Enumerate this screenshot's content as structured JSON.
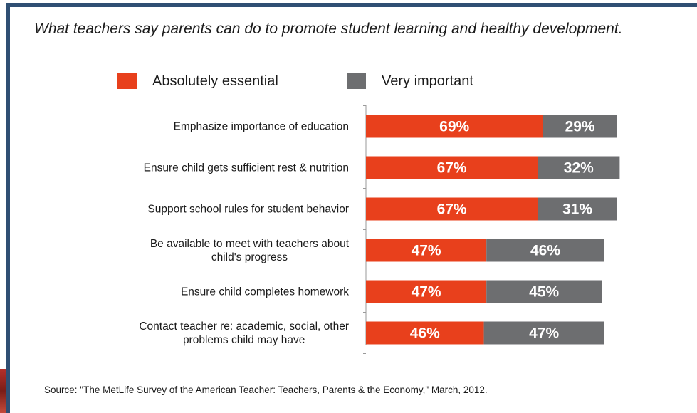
{
  "chart_data": {
    "type": "bar",
    "orientation": "horizontal",
    "stacked": true,
    "title": "What teachers say parents can do to promote student learning and healthy development.",
    "categories": [
      [
        "Emphasize importance of education"
      ],
      [
        "Ensure child gets sufficient rest & nutrition"
      ],
      [
        "Support school rules for student behavior"
      ],
      [
        "Be available to meet with teachers about",
        "child's progress"
      ],
      [
        "Ensure child completes homework"
      ],
      [
        "Contact teacher re: academic, social, other",
        "problems child may have"
      ]
    ],
    "series": [
      {
        "name": "Absolutely essential",
        "color": "#e8401c",
        "values": [
          69,
          67,
          67,
          47,
          47,
          46
        ]
      },
      {
        "name": "Very important",
        "color": "#6d6e70",
        "values": [
          29,
          32,
          31,
          46,
          45,
          47
        ]
      }
    ],
    "value_suffix": "%",
    "xlim": [
      0,
      100
    ],
    "legend_position": "top",
    "grid": false
  },
  "source": "Source: \"The MetLife Survey of the American Teacher: Teachers, Parents & the Economy,\" March, 2012."
}
